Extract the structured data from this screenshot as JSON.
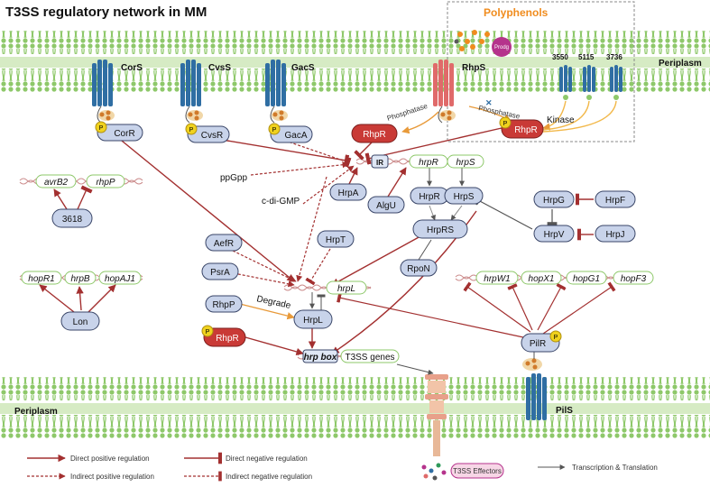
{
  "title": "T3SS regulatory network in MM",
  "polyphenols": {
    "title": "Polyphenols",
    "ligand": "Prodg"
  },
  "membrane_labels": {
    "top": "Periplasm",
    "bottom": "Periplasm"
  },
  "receptors": {
    "cors": "CorS",
    "cvss": "CvsS",
    "gacs": "GacS",
    "rhps": "RhpS",
    "pils": "PilS"
  },
  "kinase_ids": [
    "3550",
    "5115",
    "3736"
  ],
  "process_labels": {
    "phosphatase_1": "Phosphatase",
    "phosphatase_2": "Phosphatase",
    "kinase": "Kinase",
    "degrade": "Degrade"
  },
  "phospho_mark": "P",
  "signals": {
    "ppgpp": "ppGpp",
    "cdigmp": "c-di-GMP"
  },
  "nodes": {
    "corr": "CorR",
    "cvsr": "CvsR",
    "gaca": "GacA",
    "rhpr_1": "RhpR",
    "rhpr_2": "RhpR",
    "rhpr_3": "RhpR",
    "hrpa": "HrpA",
    "algu": "AlgU",
    "hrpr": "HrpR",
    "hrps": "HrpS",
    "hrprs": "HrpRS",
    "rpon": "RpoN",
    "hrpg": "HrpG",
    "hrpf": "HrpF",
    "hrpv": "HrpV",
    "hrpj": "HrpJ",
    "aefr": "AefR",
    "psra": "PsrA",
    "hrpt": "HrpT",
    "rhpp": "RhpP",
    "hrpl": "HrpL",
    "lon": "Lon",
    "n3618": "3618",
    "pilr": "PilR"
  },
  "genes": {
    "ir": "IR",
    "hrpr_gene": "hrpR",
    "hrps_gene": "hrpS",
    "hrpl_gene": "hrpL",
    "avrb2": "avrB2",
    "rhpp_gene": "rhpP",
    "hopr1": "hopR1",
    "hrpb": "hrpB",
    "hopaj1": "hopAJ1",
    "hrpw1": "hrpW1",
    "hopx1": "hopX1",
    "hopg1": "hopG1",
    "hopf3": "hopF3",
    "hrp_box": "hrp box",
    "t3ss_genes": "T3SS genes"
  },
  "effectors": "T3SS Effectors",
  "legend": {
    "direct_positive": "Direct positive regulation",
    "indirect_positive": "Indirect positive regulation",
    "direct_negative": "Direct negative regulation",
    "indirect_negative": "Indirect negative regulation",
    "transcription": "Transcription & Translation"
  },
  "colors": {
    "positive": "#a33030",
    "membrane": "#8ec86a",
    "membrane_band": "#d6ebc4",
    "receptor": "#2f6ea3",
    "rhps": "#e06a6a",
    "node_fill": "#c8d3ea",
    "node_stroke": "#3a4668",
    "rhpr_fill": "#c93a36",
    "gene_stroke": "#8ec86a",
    "polyphenol": "#f08c1e",
    "prodg": "#b5338c",
    "phospho": "#f0d21e",
    "degrade": "#e89a3a"
  }
}
